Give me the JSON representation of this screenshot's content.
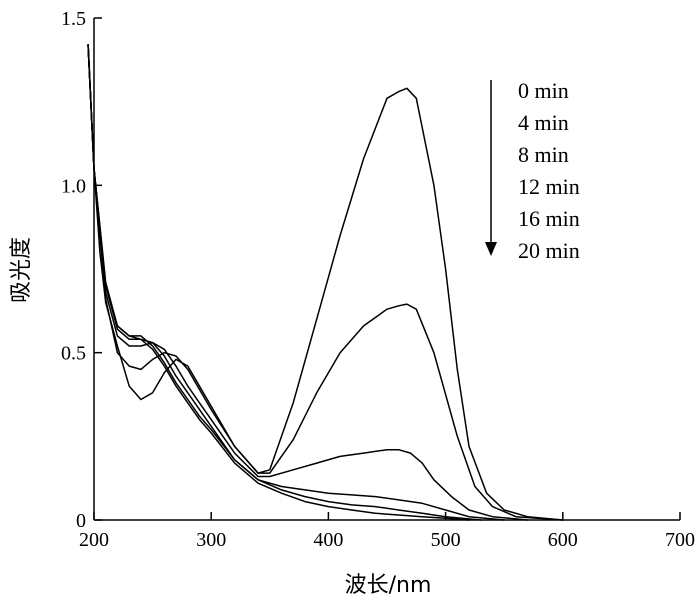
{
  "chart_data": {
    "type": "line",
    "xlabel": "波长/nm",
    "ylabel": "吸光度",
    "xlim": [
      200,
      700
    ],
    "ylim": [
      0,
      1.5
    ],
    "x_ticks": [
      "200",
      "300",
      "400",
      "500",
      "600",
      "700"
    ],
    "y_ticks": [
      "0",
      "0.5",
      "1.0",
      "1.5"
    ],
    "legend_placement": "top-right",
    "legend_arrow": "down",
    "series": [
      {
        "name": "0 min",
        "points": [
          [
            195,
            1.42
          ],
          [
            200,
            1.05
          ],
          [
            205,
            0.8
          ],
          [
            210,
            0.65
          ],
          [
            220,
            0.52
          ],
          [
            230,
            0.4
          ],
          [
            240,
            0.36
          ],
          [
            250,
            0.38
          ],
          [
            260,
            0.44
          ],
          [
            270,
            0.48
          ],
          [
            280,
            0.46
          ],
          [
            290,
            0.4
          ],
          [
            300,
            0.34
          ],
          [
            320,
            0.22
          ],
          [
            340,
            0.14
          ],
          [
            350,
            0.15
          ],
          [
            370,
            0.35
          ],
          [
            390,
            0.6
          ],
          [
            410,
            0.85
          ],
          [
            430,
            1.08
          ],
          [
            450,
            1.26
          ],
          [
            460,
            1.28
          ],
          [
            467,
            1.29
          ],
          [
            475,
            1.26
          ],
          [
            490,
            1.0
          ],
          [
            500,
            0.75
          ],
          [
            510,
            0.45
          ],
          [
            520,
            0.22
          ],
          [
            535,
            0.08
          ],
          [
            550,
            0.03
          ],
          [
            570,
            0.01
          ],
          [
            600,
            0.0
          ]
        ]
      },
      {
        "name": "4 min",
        "points": [
          [
            195,
            1.42
          ],
          [
            200,
            1.05
          ],
          [
            210,
            0.66
          ],
          [
            220,
            0.5
          ],
          [
            230,
            0.46
          ],
          [
            240,
            0.45
          ],
          [
            250,
            0.48
          ],
          [
            260,
            0.5
          ],
          [
            270,
            0.49
          ],
          [
            280,
            0.45
          ],
          [
            290,
            0.39
          ],
          [
            300,
            0.33
          ],
          [
            320,
            0.22
          ],
          [
            340,
            0.14
          ],
          [
            350,
            0.14
          ],
          [
            370,
            0.24
          ],
          [
            390,
            0.38
          ],
          [
            410,
            0.5
          ],
          [
            430,
            0.58
          ],
          [
            450,
            0.63
          ],
          [
            460,
            0.64
          ],
          [
            467,
            0.645
          ],
          [
            475,
            0.63
          ],
          [
            490,
            0.5
          ],
          [
            510,
            0.25
          ],
          [
            525,
            0.1
          ],
          [
            540,
            0.04
          ],
          [
            560,
            0.01
          ],
          [
            600,
            0.0
          ]
        ]
      },
      {
        "name": "8 min",
        "points": [
          [
            195,
            1.42
          ],
          [
            200,
            1.05
          ],
          [
            210,
            0.68
          ],
          [
            220,
            0.55
          ],
          [
            230,
            0.52
          ],
          [
            240,
            0.52
          ],
          [
            250,
            0.53
          ],
          [
            260,
            0.51
          ],
          [
            270,
            0.46
          ],
          [
            280,
            0.4
          ],
          [
            290,
            0.35
          ],
          [
            300,
            0.3
          ],
          [
            320,
            0.2
          ],
          [
            340,
            0.13
          ],
          [
            350,
            0.13
          ],
          [
            370,
            0.15
          ],
          [
            390,
            0.17
          ],
          [
            410,
            0.19
          ],
          [
            430,
            0.2
          ],
          [
            450,
            0.21
          ],
          [
            460,
            0.21
          ],
          [
            470,
            0.2
          ],
          [
            480,
            0.17
          ],
          [
            490,
            0.12
          ],
          [
            505,
            0.07
          ],
          [
            520,
            0.03
          ],
          [
            540,
            0.01
          ],
          [
            570,
            0.0
          ]
        ]
      },
      {
        "name": "12 min",
        "points": [
          [
            195,
            1.42
          ],
          [
            200,
            1.05
          ],
          [
            210,
            0.7
          ],
          [
            220,
            0.57
          ],
          [
            230,
            0.54
          ],
          [
            240,
            0.54
          ],
          [
            250,
            0.53
          ],
          [
            260,
            0.49
          ],
          [
            270,
            0.43
          ],
          [
            280,
            0.38
          ],
          [
            290,
            0.33
          ],
          [
            300,
            0.28
          ],
          [
            320,
            0.18
          ],
          [
            340,
            0.12
          ],
          [
            360,
            0.1
          ],
          [
            380,
            0.09
          ],
          [
            400,
            0.08
          ],
          [
            420,
            0.075
          ],
          [
            440,
            0.07
          ],
          [
            460,
            0.06
          ],
          [
            480,
            0.05
          ],
          [
            500,
            0.03
          ],
          [
            520,
            0.01
          ],
          [
            550,
            0.0
          ]
        ]
      },
      {
        "name": "16 min",
        "points": [
          [
            195,
            1.42
          ],
          [
            200,
            1.05
          ],
          [
            210,
            0.7
          ],
          [
            220,
            0.58
          ],
          [
            230,
            0.55
          ],
          [
            240,
            0.55
          ],
          [
            250,
            0.52
          ],
          [
            260,
            0.47
          ],
          [
            270,
            0.41
          ],
          [
            280,
            0.36
          ],
          [
            290,
            0.31
          ],
          [
            300,
            0.27
          ],
          [
            320,
            0.18
          ],
          [
            340,
            0.12
          ],
          [
            360,
            0.09
          ],
          [
            380,
            0.07
          ],
          [
            400,
            0.055
          ],
          [
            420,
            0.045
          ],
          [
            440,
            0.04
          ],
          [
            460,
            0.03
          ],
          [
            480,
            0.02
          ],
          [
            500,
            0.01
          ],
          [
            530,
            0.0
          ]
        ]
      },
      {
        "name": "20 min",
        "points": [
          [
            195,
            1.42
          ],
          [
            200,
            1.05
          ],
          [
            210,
            0.71
          ],
          [
            220,
            0.58
          ],
          [
            230,
            0.55
          ],
          [
            240,
            0.54
          ],
          [
            250,
            0.51
          ],
          [
            260,
            0.46
          ],
          [
            270,
            0.4
          ],
          [
            280,
            0.35
          ],
          [
            290,
            0.3
          ],
          [
            300,
            0.26
          ],
          [
            320,
            0.17
          ],
          [
            340,
            0.11
          ],
          [
            360,
            0.08
          ],
          [
            380,
            0.055
          ],
          [
            400,
            0.04
          ],
          [
            420,
            0.03
          ],
          [
            440,
            0.02
          ],
          [
            460,
            0.015
          ],
          [
            480,
            0.01
          ],
          [
            500,
            0.005
          ],
          [
            520,
            0.0
          ]
        ]
      }
    ]
  }
}
